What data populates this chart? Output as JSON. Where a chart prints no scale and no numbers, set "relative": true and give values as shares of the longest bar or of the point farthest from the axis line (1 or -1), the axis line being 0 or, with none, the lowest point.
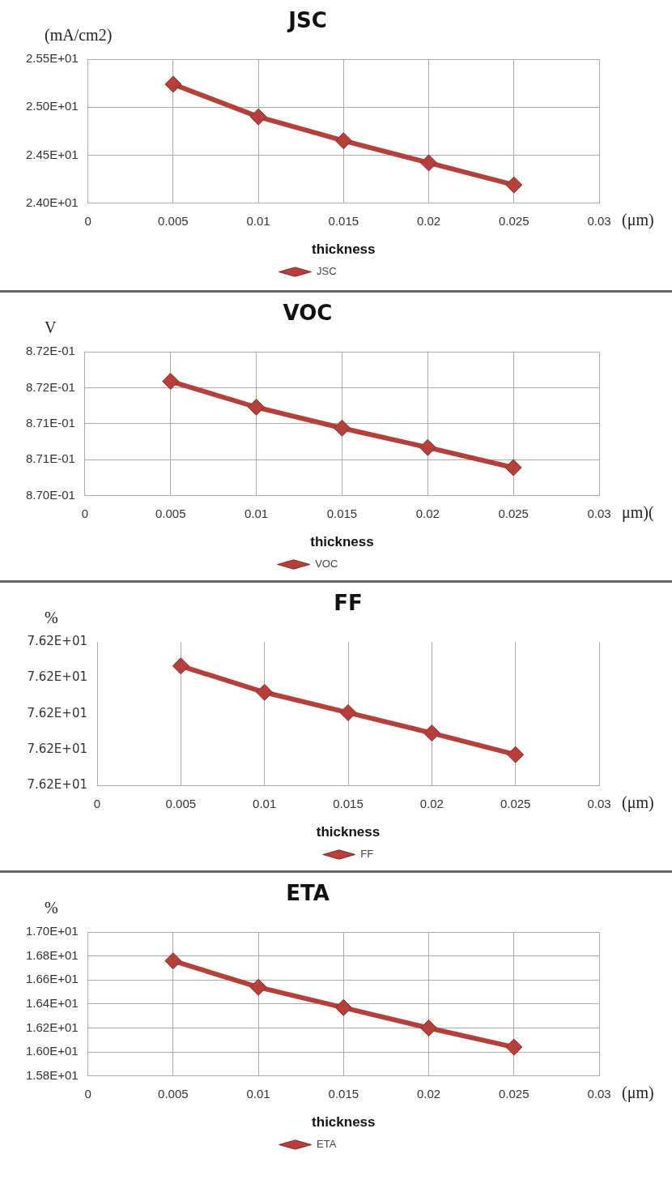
{
  "chart_data": [
    {
      "type": "line",
      "title": "JSC",
      "ylabel": "(mA/cm2)",
      "xlabel": "thickness",
      "annotations": [
        "(μm)"
      ],
      "x": [
        0.005,
        0.01,
        0.015,
        0.02,
        0.025
      ],
      "series": [
        {
          "name": "JSC",
          "color": "#b5403b",
          "values": [
            25.24,
            24.9,
            24.65,
            24.42,
            24.19
          ]
        }
      ],
      "xlim": [
        0,
        0.03
      ],
      "xticks": [
        0,
        0.005,
        0.01,
        0.015,
        0.02,
        0.025,
        0.03
      ],
      "ylim": [
        24.0,
        25.5
      ],
      "yticks": [
        {
          "value": 24.0,
          "label": "2.40E+01"
        },
        {
          "value": 24.5,
          "label": "2.45E+01"
        },
        {
          "value": 25.0,
          "label": "2.50E+01"
        },
        {
          "value": 25.5,
          "label": "2.55E+01"
        }
      ],
      "grid": true,
      "legend": "bottom",
      "marker": "diamond",
      "line_style": "solid"
    },
    {
      "type": "line",
      "title": "VOC",
      "ylabel": "V",
      "xlabel": "thickness",
      "annotations": [
        "μm)("
      ],
      "x": [
        0.005,
        0.01,
        0.015,
        0.02,
        0.025
      ],
      "series": [
        {
          "name": "VOC",
          "color": "#b5403b",
          "values": [
            0.87159,
            0.87123,
            0.87094,
            0.87067,
            0.87039
          ]
        }
      ],
      "xlim": [
        0,
        0.03
      ],
      "xticks": [
        0,
        0.005,
        0.01,
        0.015,
        0.02,
        0.025,
        0.03
      ],
      "ylim": [
        0.87,
        0.872
      ],
      "yticks": [
        {
          "value": 0.87,
          "label": "8.70E-01"
        },
        {
          "value": 0.8705,
          "label": "8.71E-01"
        },
        {
          "value": 0.871,
          "label": "8.71E-01"
        },
        {
          "value": 0.8715,
          "label": "8.72E-01"
        },
        {
          "value": 0.872,
          "label": "8.72E-01"
        }
      ],
      "grid": true,
      "legend": "bottom",
      "marker": "diamond",
      "line_style": "solid"
    },
    {
      "type": "line",
      "title": "FF",
      "ylabel": "%",
      "xlabel": "thickness",
      "annotations": [
        "7.62E+01",
        "7.62E+01",
        "7.62E+01",
        "7.62E+01",
        "7.62E+01",
        "(μm)"
      ],
      "x": [
        0.005,
        0.01,
        0.015,
        0.02,
        0.025
      ],
      "relative": true,
      "series": [
        {
          "name": "FF",
          "color": "#b5403b",
          "values": [
            1,
            0.78,
            0.61,
            0.44,
            0.26
          ]
        }
      ],
      "xlim": [
        0,
        0.03
      ],
      "xticks": [
        0,
        0.005,
        0.01,
        0.015,
        0.02,
        0.025,
        0.03
      ],
      "grid": "x",
      "legend": "bottom",
      "marker": "diamond",
      "line_style": "solid"
    },
    {
      "type": "line",
      "title": "ETA",
      "ylabel": "%",
      "xlabel": "thickness",
      "annotations": [
        "(μm)"
      ],
      "x": [
        0.005,
        0.01,
        0.015,
        0.02,
        0.025
      ],
      "series": [
        {
          "name": "ETA",
          "color": "#b5403b",
          "values": [
            16.76,
            16.54,
            16.37,
            16.2,
            16.04
          ]
        }
      ],
      "xlim": [
        0,
        0.03
      ],
      "xticks": [
        0,
        0.005,
        0.01,
        0.015,
        0.02,
        0.025,
        0.03
      ],
      "ylim": [
        15.8,
        17.0
      ],
      "yticks": [
        {
          "value": 15.8,
          "label": "1.58E+01"
        },
        {
          "value": 16.0,
          "label": "1.60E+01"
        },
        {
          "value": 16.2,
          "label": "1.62E+01"
        },
        {
          "value": 16.4,
          "label": "1.64E+01"
        },
        {
          "value": 16.6,
          "label": "1.66E+01"
        },
        {
          "value": 16.8,
          "label": "1.68E+01"
        },
        {
          "value": 17.0,
          "label": "1.70E+01"
        }
      ],
      "grid": true,
      "legend": "bottom",
      "marker": "diamond",
      "line_style": "solid"
    }
  ]
}
